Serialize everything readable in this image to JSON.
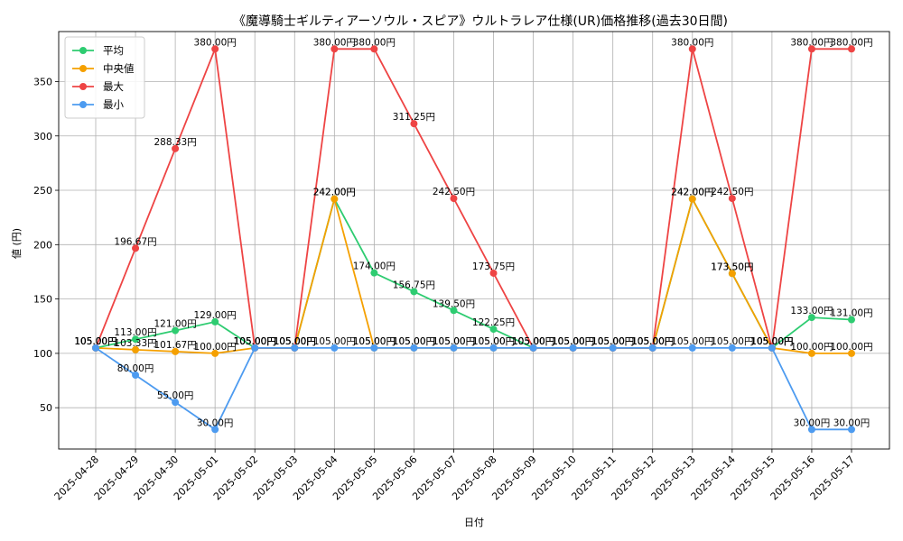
{
  "chart_data": {
    "type": "line",
    "title": "《魔導騎士ギルティアーソウル・スピア》ウルトラレア仕様(UR)価格推移(過去30日間)",
    "xlabel": "日付",
    "ylabel": "値 (円)",
    "ylim": [
      12,
      396
    ],
    "yticks": [
      50,
      100,
      150,
      200,
      250,
      300,
      350
    ],
    "grid": true,
    "legend_position": "top-left",
    "label_suffix": "円",
    "categories": [
      "2025-04-28",
      "2025-04-29",
      "2025-04-30",
      "2025-05-01",
      "2025-05-02",
      "2025-05-03",
      "2025-05-04",
      "2025-05-05",
      "2025-05-06",
      "2025-05-07",
      "2025-05-08",
      "2025-05-09",
      "2025-05-10",
      "2025-05-11",
      "2025-05-12",
      "2025-05-13",
      "2025-05-14",
      "2025-05-15",
      "2025-05-16",
      "2025-05-17"
    ],
    "series": [
      {
        "name": "平均",
        "color": "#2ecc71",
        "values": [
          105.0,
          113.0,
          121.0,
          129.0,
          105.0,
          105.0,
          242.0,
          174.0,
          156.75,
          139.5,
          122.25,
          105.0,
          105.0,
          105.0,
          105.0,
          242.0,
          173.5,
          105.0,
          133.0,
          131.0
        ]
      },
      {
        "name": "中央値",
        "color": "#f5a000",
        "values": [
          105.0,
          103.33,
          101.67,
          100.0,
          105.0,
          105.0,
          242.0,
          105.0,
          105.0,
          105.0,
          105.0,
          105.0,
          105.0,
          105.0,
          105.0,
          242.0,
          173.5,
          105.0,
          100.0,
          100.0
        ]
      },
      {
        "name": "最大",
        "color": "#ee4444",
        "values": [
          105.0,
          196.67,
          288.33,
          380.0,
          105.0,
          105.0,
          380.0,
          380.0,
          311.25,
          242.5,
          173.75,
          105.0,
          105.0,
          105.0,
          105.0,
          380.0,
          242.5,
          105.0,
          380.0,
          380.0
        ]
      },
      {
        "name": "最小",
        "color": "#4d9bf0",
        "values": [
          105.0,
          80.0,
          55.0,
          30.0,
          105.0,
          105.0,
          105.0,
          105.0,
          105.0,
          105.0,
          105.0,
          105.0,
          105.0,
          105.0,
          105.0,
          105.0,
          105.0,
          105.0,
          30.0,
          30.0
        ]
      }
    ]
  }
}
